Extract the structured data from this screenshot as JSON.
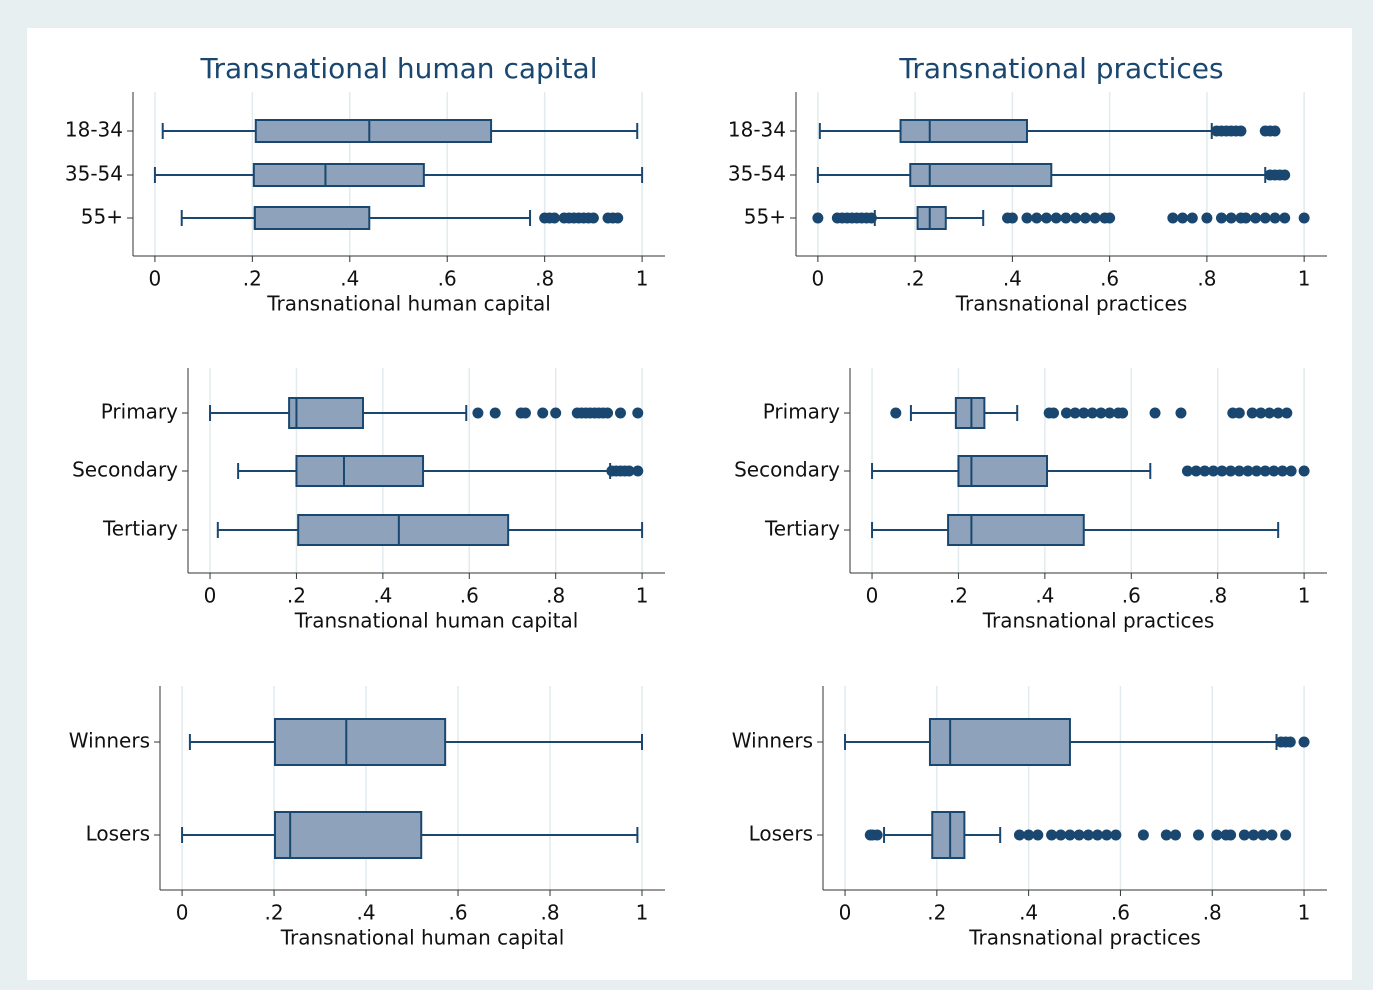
{
  "chart_data": [
    {
      "type": "box",
      "title": "Transnational human capital",
      "xlabel": "Transnational human capital",
      "categories": [
        "18-34",
        "35-54",
        "55+"
      ],
      "boxes": [
        {
          "whislo": 0.016,
          "q1": 0.207,
          "med": 0.44,
          "q3": 0.69,
          "whishi": 0.99,
          "fliers": []
        },
        {
          "whislo": 0,
          "q1": 0.203,
          "med": 0.35,
          "q3": 0.552,
          "whishi": 1,
          "fliers": []
        },
        {
          "whislo": 0.055,
          "q1": 0.205,
          "med": 0.205,
          "q3": 0.44,
          "whishi": 0.77,
          "fliers": [
            0.8,
            0.81,
            0.82,
            0.84,
            0.85,
            0.86,
            0.87,
            0.88,
            0.89,
            0.9,
            0.93,
            0.94,
            0.95
          ]
        }
      ],
      "xlim": [
        -0.045,
        1.047
      ],
      "xticks": [
        0,
        {
          "value": 0.2,
          "label": ".2"
        },
        {
          "value": 0.4,
          "label": ".4"
        },
        {
          "value": 0.6,
          "label": ".6"
        },
        {
          "value": 0.8,
          "label": ".8"
        },
        1
      ],
      "grid": true,
      "color": "#8ea3bb",
      "line_color": "#1a476f"
    },
    {
      "type": "box",
      "title": "Transnational practices",
      "xlabel": "Transnational practices",
      "categories": [
        "18-34",
        "35-54",
        "55+"
      ],
      "boxes": [
        {
          "whislo": 0.004,
          "q1": 0.17,
          "med": 0.23,
          "q3": 0.43,
          "whishi": 0.81,
          "fliers": [
            0.82,
            0.83,
            0.84,
            0.85,
            0.86,
            0.87,
            0.92,
            0.93,
            0.94
          ]
        },
        {
          "whislo": 0,
          "q1": 0.19,
          "med": 0.23,
          "q3": 0.48,
          "whishi": 0.92,
          "fliers": [
            0.93,
            0.94,
            0.95,
            0.96
          ]
        },
        {
          "whislo": 0.117,
          "q1": 0.205,
          "med": 0.23,
          "q3": 0.263,
          "whishi": 0.34,
          "fliers": [
            0,
            0.04,
            0.05,
            0.06,
            0.07,
            0.08,
            0.09,
            0.1,
            0.11,
            0.39,
            0.4,
            0.43,
            0.45,
            0.47,
            0.49,
            0.51,
            0.53,
            0.55,
            0.57,
            0.59,
            0.6,
            0.73,
            0.75,
            0.77,
            0.8,
            0.83,
            0.85,
            0.87,
            0.88,
            0.9,
            0.92,
            0.94,
            0.96,
            1
          ]
        }
      ],
      "xlim": [
        -0.045,
        1.047
      ],
      "xticks": [
        0,
        {
          "value": 0.2,
          "label": ".2"
        },
        {
          "value": 0.4,
          "label": ".4"
        },
        {
          "value": 0.6,
          "label": ".6"
        },
        {
          "value": 0.8,
          "label": ".8"
        },
        1
      ],
      "grid": true,
      "color": "#8ea3bb",
      "line_color": "#1a476f"
    },
    {
      "type": "box",
      "xlabel": "Transnational human capital",
      "categories": [
        "Primary",
        "Secondary",
        "Tertiary"
      ],
      "boxes": [
        {
          "whislo": 0,
          "q1": 0.183,
          "med": 0.2,
          "q3": 0.354,
          "whishi": 0.593,
          "fliers": [
            0.62,
            0.66,
            0.72,
            0.73,
            0.77,
            0.8,
            0.85,
            0.86,
            0.87,
            0.88,
            0.89,
            0.9,
            0.91,
            0.92,
            0.95,
            0.99
          ]
        },
        {
          "whislo": 0.065,
          "q1": 0.2,
          "med": 0.31,
          "q3": 0.493,
          "whishi": 0.926,
          "fliers": [
            0.93,
            0.94,
            0.95,
            0.96,
            0.97,
            0.99
          ]
        },
        {
          "whislo": 0.018,
          "q1": 0.204,
          "med": 0.437,
          "q3": 0.69,
          "whishi": 1,
          "fliers": []
        }
      ],
      "xlim": [
        -0.051,
        1.053
      ],
      "xticks": [
        0,
        {
          "value": 0.2,
          "label": ".2"
        },
        {
          "value": 0.4,
          "label": ".4"
        },
        {
          "value": 0.6,
          "label": ".6"
        },
        {
          "value": 0.8,
          "label": ".8"
        },
        1
      ],
      "grid": true,
      "color": "#8ea3bb",
      "line_color": "#1a476f"
    },
    {
      "type": "box",
      "xlabel": "Transnational practices",
      "categories": [
        "Primary",
        "Secondary",
        "Tertiary"
      ],
      "boxes": [
        {
          "whislo": 0.09,
          "q1": 0.194,
          "med": 0.23,
          "q3": 0.26,
          "whishi": 0.336,
          "fliers": [
            0.055,
            0.41,
            0.42,
            0.45,
            0.47,
            0.49,
            0.51,
            0.53,
            0.55,
            0.57,
            0.58,
            0.655,
            0.715,
            0.835,
            0.85,
            0.88,
            0.9,
            0.92,
            0.94,
            0.96
          ]
        },
        {
          "whislo": 0,
          "q1": 0.2,
          "med": 0.23,
          "q3": 0.405,
          "whishi": 0.644,
          "fliers": [
            0.73,
            0.75,
            0.77,
            0.79,
            0.81,
            0.83,
            0.85,
            0.87,
            0.89,
            0.91,
            0.93,
            0.95,
            0.97,
            1
          ]
        },
        {
          "whislo": 0,
          "q1": 0.176,
          "med": 0.23,
          "q3": 0.49,
          "whishi": 0.94,
          "fliers": []
        }
      ],
      "xlim": [
        -0.051,
        1.053
      ],
      "xticks": [
        0,
        {
          "value": 0.2,
          "label": ".2"
        },
        {
          "value": 0.4,
          "label": ".4"
        },
        {
          "value": 0.6,
          "label": ".6"
        },
        {
          "value": 0.8,
          "label": ".8"
        },
        1
      ],
      "grid": true,
      "color": "#8ea3bb",
      "line_color": "#1a476f"
    },
    {
      "type": "box",
      "xlabel": "Transnational human capital",
      "categories": [
        "Winners",
        "Losers"
      ],
      "boxes": [
        {
          "whislo": 0.017,
          "q1": 0.202,
          "med": 0.357,
          "q3": 0.572,
          "whishi": 1,
          "fliers": []
        },
        {
          "whislo": 0,
          "q1": 0.202,
          "med": 0.235,
          "q3": 0.52,
          "whishi": 0.99,
          "fliers": []
        }
      ],
      "xlim": [
        -0.048,
        1.05
      ],
      "xticks": [
        0,
        {
          "value": 0.2,
          "label": ".2"
        },
        {
          "value": 0.4,
          "label": ".4"
        },
        {
          "value": 0.6,
          "label": ".6"
        },
        {
          "value": 0.8,
          "label": ".8"
        },
        1
      ],
      "grid": true,
      "color": "#8ea3bb",
      "line_color": "#1a476f"
    },
    {
      "type": "box",
      "xlabel": "Transnational practices",
      "categories": [
        "Winners",
        "Losers"
      ],
      "boxes": [
        {
          "whislo": 0,
          "q1": 0.185,
          "med": 0.229,
          "q3": 0.49,
          "whishi": 0.94,
          "fliers": [
            0.95,
            0.96,
            0.97,
            1
          ]
        },
        {
          "whislo": 0.085,
          "q1": 0.19,
          "med": 0.229,
          "q3": 0.26,
          "whishi": 0.338,
          "fliers": [
            0.055,
            0.06,
            0.07,
            0.38,
            0.4,
            0.42,
            0.45,
            0.47,
            0.49,
            0.51,
            0.53,
            0.55,
            0.57,
            0.59,
            0.65,
            0.7,
            0.72,
            0.77,
            0.81,
            0.83,
            0.84,
            0.87,
            0.89,
            0.91,
            0.93,
            0.96
          ]
        }
      ],
      "xlim": [
        -0.048,
        1.05
      ],
      "xticks": [
        0,
        {
          "value": 0.2,
          "label": ".2"
        },
        {
          "value": 0.4,
          "label": ".4"
        },
        {
          "value": 0.6,
          "label": ".6"
        },
        {
          "value": 0.8,
          "label": ".8"
        },
        1
      ],
      "grid": true,
      "color": "#8ea3bb",
      "line_color": "#1a476f"
    }
  ]
}
